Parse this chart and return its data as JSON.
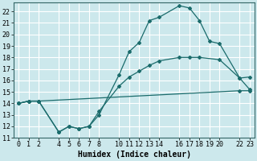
{
  "bg_color": "#cce8ec",
  "grid_color_major": "#ffffff",
  "grid_color_minor": "#e8a0a0",
  "line_color": "#1a6b6b",
  "xlabel": "Humidex (Indice chaleur)",
  "xlim": [
    -0.5,
    23.5
  ],
  "ylim": [
    11,
    22.8
  ],
  "xticks": [
    0,
    1,
    2,
    4,
    5,
    6,
    7,
    8,
    10,
    11,
    12,
    13,
    14,
    16,
    17,
    18,
    19,
    20,
    22,
    23
  ],
  "yticks": [
    11,
    12,
    13,
    14,
    15,
    16,
    17,
    18,
    19,
    20,
    21,
    22
  ],
  "curve1_x": [
    0,
    1,
    2,
    4,
    5,
    6,
    7,
    8,
    10,
    11,
    12,
    13,
    14,
    16,
    17,
    18,
    19,
    20,
    22,
    23
  ],
  "curve1_y": [
    14.0,
    14.2,
    14.2,
    11.5,
    12.0,
    11.8,
    12.0,
    13.0,
    16.5,
    18.5,
    19.3,
    21.2,
    21.5,
    22.5,
    22.3,
    21.2,
    19.4,
    19.2,
    16.2,
    15.2
  ],
  "curve2_x": [
    0,
    1,
    2,
    22,
    23
  ],
  "curve2_y": [
    14.0,
    14.2,
    14.2,
    15.1,
    15.1
  ],
  "curve3_x": [
    0,
    1,
    2,
    4,
    5,
    6,
    7,
    8,
    10,
    11,
    12,
    13,
    14,
    16,
    17,
    18,
    20,
    22,
    23
  ],
  "curve3_y": [
    14.0,
    14.2,
    14.2,
    11.5,
    12.0,
    11.8,
    12.0,
    13.3,
    15.5,
    16.3,
    16.8,
    17.3,
    17.7,
    18.0,
    18.0,
    18.0,
    17.8,
    16.2,
    16.3
  ],
  "xlabel_fontsize": 7,
  "tick_fontsize": 6
}
